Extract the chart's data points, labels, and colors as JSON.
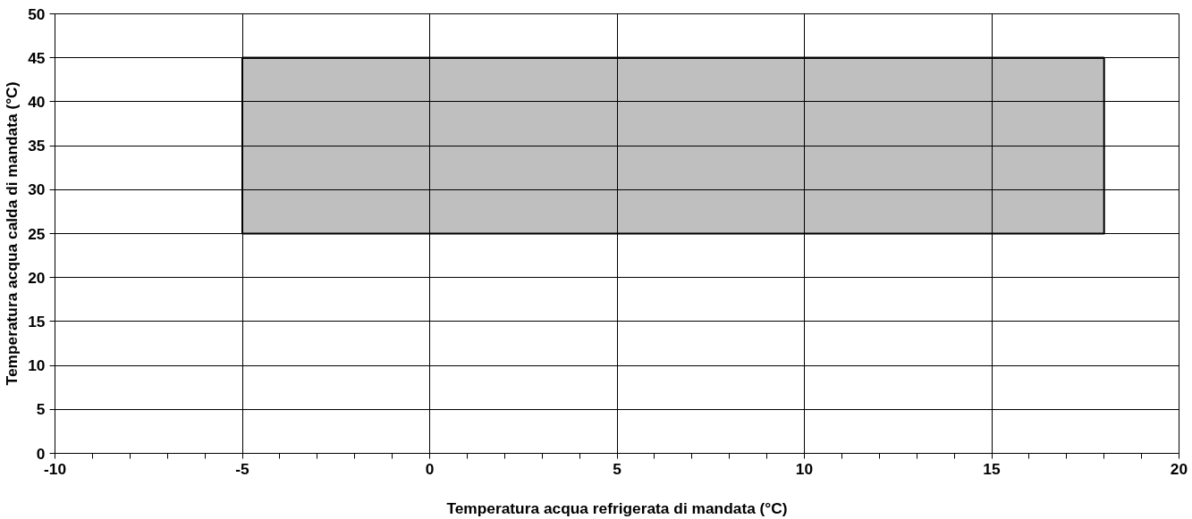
{
  "chart_data": {
    "type": "line",
    "xlabel": "Temperatura acqua refrigerata di mandata (°C)",
    "ylabel": "Temperatura acqua calda di mandata (°C)",
    "xlim": [
      -10,
      20
    ],
    "ylim": [
      0,
      50
    ],
    "xticks": [
      -10,
      {
        "value": -9,
        "label": null
      },
      {
        "value": -8,
        "label": null
      },
      {
        "value": -7,
        "label": null
      },
      {
        "value": -6,
        "label": null
      },
      -5,
      {
        "value": -4,
        "label": null
      },
      {
        "value": -3,
        "label": null
      },
      {
        "value": -2,
        "label": null
      },
      {
        "value": -1,
        "label": null
      },
      0,
      {
        "value": 1,
        "label": null
      },
      {
        "value": 2,
        "label": null
      },
      {
        "value": 3,
        "label": null
      },
      {
        "value": 4,
        "label": null
      },
      5,
      {
        "value": 6,
        "label": null
      },
      {
        "value": 7,
        "label": null
      },
      {
        "value": 8,
        "label": null
      },
      {
        "value": 9,
        "label": null
      },
      10,
      {
        "value": 11,
        "label": null
      },
      {
        "value": 12,
        "label": null
      },
      {
        "value": 13,
        "label": null
      },
      {
        "value": 14,
        "label": null
      },
      15,
      {
        "value": 16,
        "label": null
      },
      {
        "value": 17,
        "label": null
      },
      {
        "value": 18,
        "label": null
      },
      {
        "value": 19,
        "label": null
      },
      20
    ],
    "yticks": [
      0,
      5,
      10,
      15,
      20,
      25,
      30,
      35,
      40,
      45,
      50
    ],
    "grid": true,
    "series": [
      {
        "type": "line",
        "color": "#000000",
        "x": [
          -5,
          18
        ],
        "values": [
          45,
          45
        ],
        "lower": [
          25,
          25
        ],
        "upper": [
          45,
          45
        ]
      }
    ]
  }
}
